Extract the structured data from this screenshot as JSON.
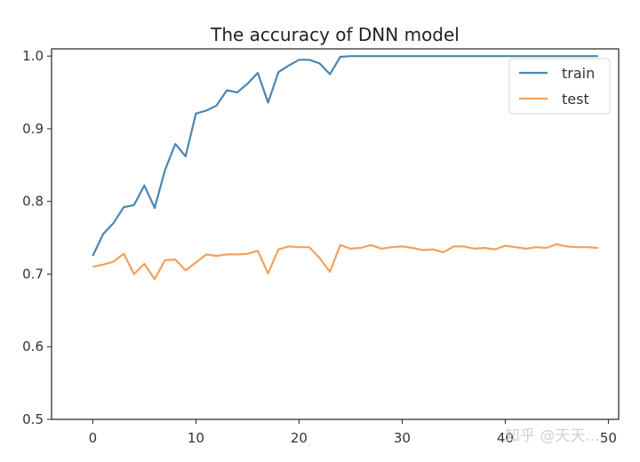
{
  "chart_data": {
    "type": "line",
    "title": "The accuracy of DNN model",
    "xlabel": "",
    "ylabel": "",
    "xlim": [
      -4,
      51
    ],
    "ylim": [
      0.5,
      1.01
    ],
    "xticks": [
      0,
      10,
      20,
      30,
      40,
      50
    ],
    "yticks": [
      0.5,
      0.6,
      0.7,
      0.8,
      0.9,
      1.0
    ],
    "xtick_labels": [
      "0",
      "10",
      "20",
      "30",
      "40",
      "50"
    ],
    "ytick_labels": [
      "0.5",
      "0.6",
      "0.7",
      "0.8",
      "0.9",
      "1.0"
    ],
    "legend_position": "top-right",
    "grid": false,
    "x": [
      0,
      1,
      2,
      3,
      4,
      5,
      6,
      7,
      8,
      9,
      10,
      11,
      12,
      13,
      14,
      15,
      16,
      17,
      18,
      19,
      20,
      21,
      22,
      23,
      24,
      25,
      26,
      27,
      28,
      29,
      30,
      31,
      32,
      33,
      34,
      35,
      36,
      37,
      38,
      39,
      40,
      41,
      42,
      43,
      44,
      45,
      46,
      47,
      48,
      49
    ],
    "series": [
      {
        "name": "train",
        "color": "#4a86b3",
        "values": [
          0.725,
          0.755,
          0.77,
          0.792,
          0.795,
          0.822,
          0.791,
          0.843,
          0.879,
          0.862,
          0.921,
          0.925,
          0.932,
          0.953,
          0.95,
          0.962,
          0.977,
          0.936,
          0.978,
          0.987,
          0.995,
          0.995,
          0.99,
          0.975,
          0.999,
          1.0,
          1.0,
          1.0,
          1.0,
          1.0,
          1.0,
          1.0,
          1.0,
          1.0,
          1.0,
          1.0,
          1.0,
          1.0,
          1.0,
          1.0,
          1.0,
          1.0,
          1.0,
          1.0,
          1.0,
          1.0,
          1.0,
          1.0,
          1.0,
          1.0
        ]
      },
      {
        "name": "test",
        "color": "#f5a05a",
        "values": [
          0.71,
          0.713,
          0.717,
          0.728,
          0.7,
          0.714,
          0.693,
          0.719,
          0.72,
          0.705,
          0.716,
          0.727,
          0.725,
          0.727,
          0.727,
          0.728,
          0.732,
          0.701,
          0.734,
          0.738,
          0.737,
          0.737,
          0.722,
          0.703,
          0.74,
          0.735,
          0.736,
          0.74,
          0.735,
          0.737,
          0.738,
          0.736,
          0.733,
          0.734,
          0.73,
          0.738,
          0.738,
          0.735,
          0.736,
          0.734,
          0.739,
          0.737,
          0.735,
          0.737,
          0.736,
          0.741,
          0.738,
          0.737,
          0.737,
          0.736
        ]
      }
    ]
  },
  "watermark": "知乎 @天天..."
}
